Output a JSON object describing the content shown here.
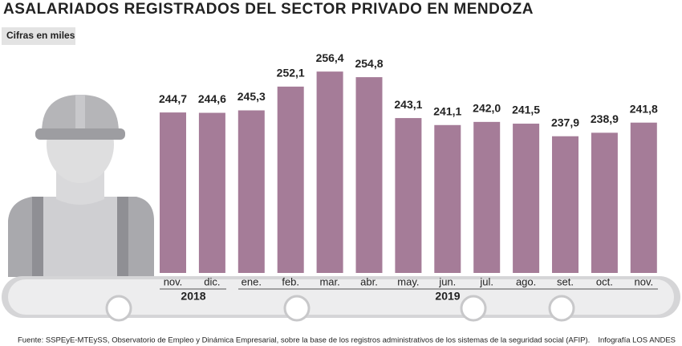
{
  "chart_data": {
    "type": "bar",
    "title": "ASALARIADOS REGISTRADOS DEL SECTOR PRIVADO EN MENDOZA",
    "subtitle": "Cifras en miles",
    "categories": [
      "nov.",
      "dic.",
      "ene.",
      "feb.",
      "mar.",
      "abr.",
      "may.",
      "jun.",
      "jul.",
      "ago.",
      "set.",
      "oct.",
      "nov."
    ],
    "values": [
      244.7,
      244.6,
      245.3,
      252.1,
      256.4,
      254.8,
      243.1,
      241.1,
      242.0,
      241.5,
      237.9,
      238.9,
      241.8
    ],
    "value_labels": [
      "244,7",
      "244,6",
      "245,3",
      "252,1",
      "256,4",
      "254,8",
      "243,1",
      "241,1",
      "242,0",
      "241,5",
      "237,9",
      "238,9",
      "241,8"
    ],
    "year_labels": [
      "2018",
      "2019"
    ],
    "color": "#a57c98",
    "ylim": [
      198.8,
      258.5
    ],
    "source": "Fuente: SSPEyE-MTEySS, Observatorio de Empleo y Dinámica Empresarial,  sobre la base de los registros administrativos de los sistemas de la seguridad social (AFIP).",
    "credit": "Infografía LOS ANDES"
  }
}
